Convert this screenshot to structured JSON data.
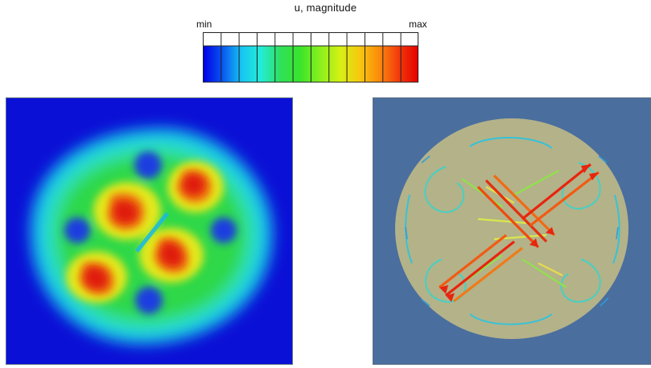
{
  "legend": {
    "title": "u, magnitude",
    "min_label": "min",
    "max_label": "max",
    "colormap_stops": [
      "#0000e6",
      "#0a56f0",
      "#17c6f2",
      "#24ecd6",
      "#2fe05a",
      "#39e42c",
      "#8ef01c",
      "#d6f014",
      "#f7c80f",
      "#fa8a0c",
      "#f23a0b",
      "#e60000"
    ]
  },
  "panels": {
    "left": {
      "content": "contour-plot",
      "background_color": "#0b10d6"
    },
    "right": {
      "content": "vector-glyph-plot",
      "background_color": "#4a6e9e",
      "disk_color": "#b4b289"
    }
  }
}
